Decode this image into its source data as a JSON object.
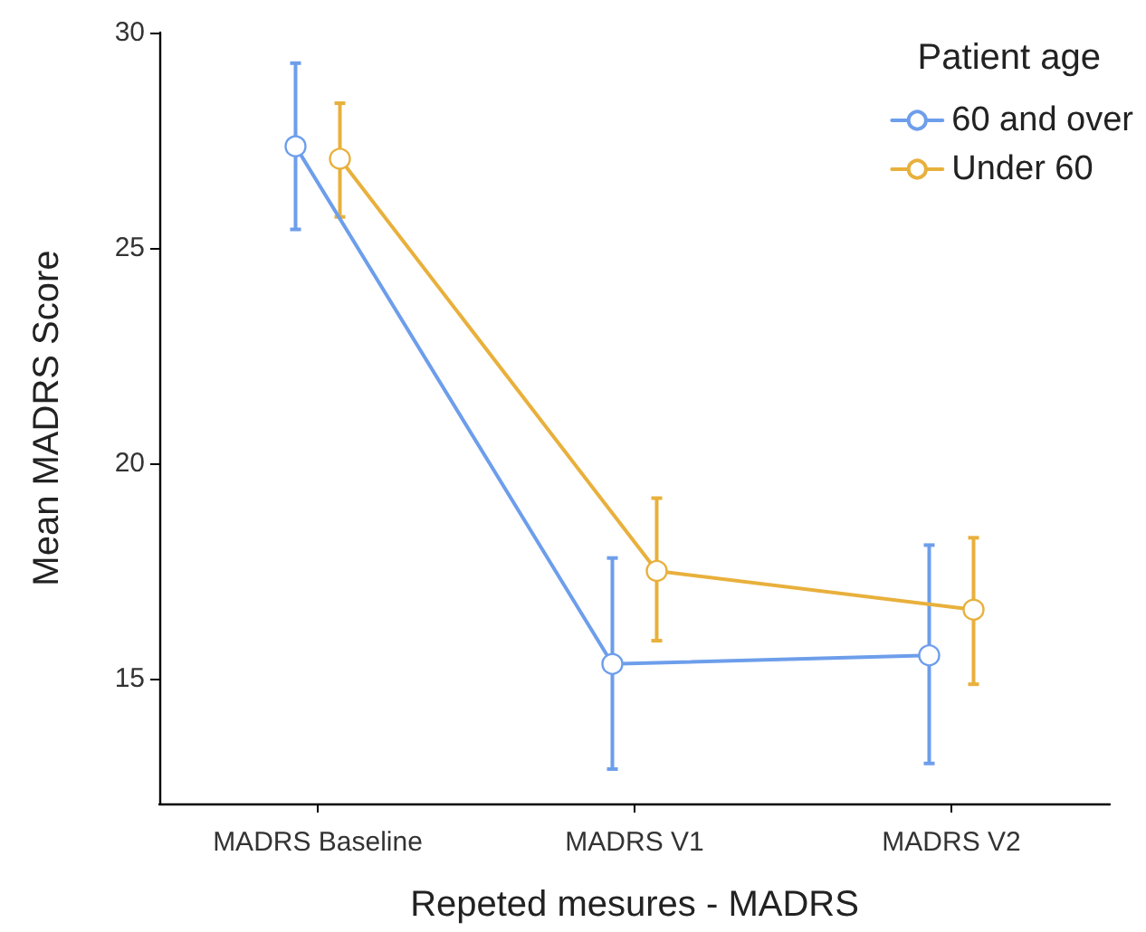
{
  "chart_data": {
    "type": "line",
    "xlabel": "Repeted mesures - MADRS",
    "ylabel": "Mean MADRS Score",
    "legend_title": "Patient age",
    "categories": [
      "MADRS Baseline",
      "MADRS V1",
      "MADRS V2"
    ],
    "series": [
      {
        "name": "60 and over",
        "color": "#6d9eeb",
        "values": [
          27.36,
          15.34,
          15.54
        ],
        "errors": [
          [
            25.43,
            29.29
          ],
          [
            12.9,
            17.8
          ],
          [
            13.03,
            18.1
          ]
        ]
      },
      {
        "name": "Under 60",
        "color": "#e8b03c",
        "values": [
          27.07,
          17.5,
          16.6
        ],
        "errors": [
          [
            25.72,
            28.36
          ],
          [
            15.88,
            19.19
          ],
          [
            14.87,
            18.27
          ]
        ]
      }
    ],
    "ylim": [
      12.1,
      30
    ],
    "yticks": [
      15,
      20,
      25,
      30
    ],
    "grid": false,
    "legend": "top right",
    "marker": "circle",
    "line_style": "solid"
  }
}
